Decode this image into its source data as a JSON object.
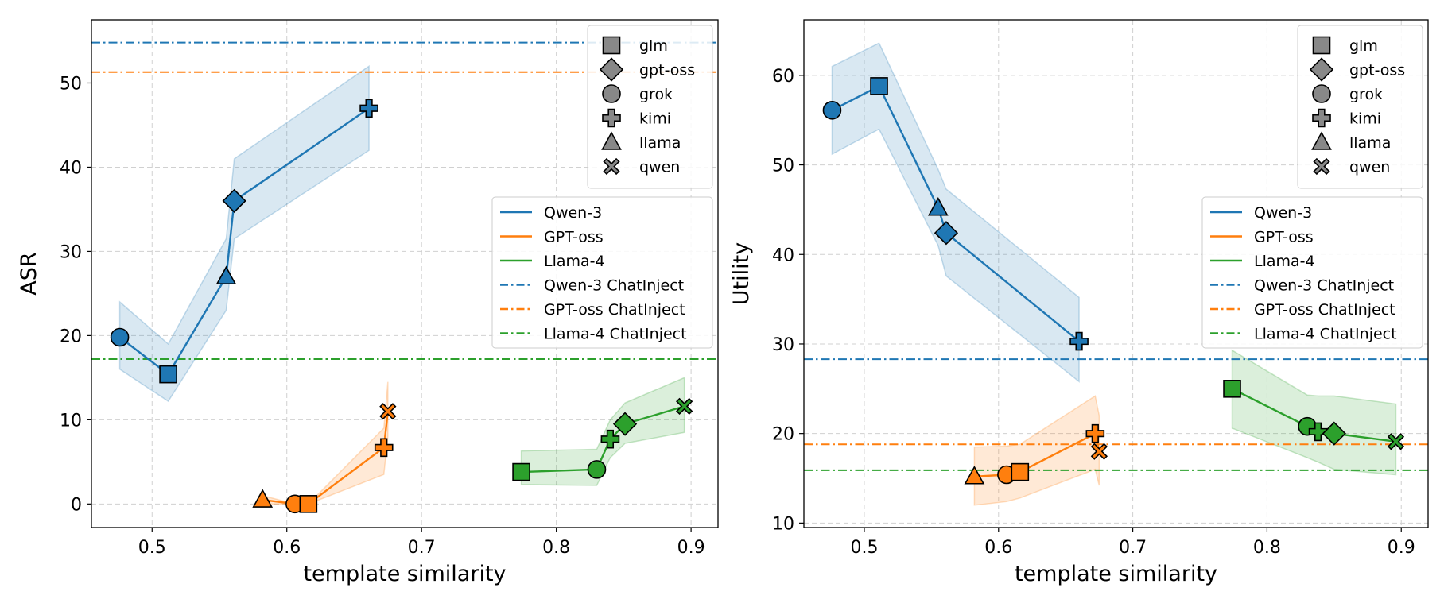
{
  "chart_data": [
    {
      "type": "line",
      "xlabel": "template similarity",
      "ylabel": "ASR",
      "xlim": [
        0.455,
        0.92
      ],
      "ylim": [
        -2.8,
        57.5
      ],
      "xticks": [
        "0.5",
        "0.6",
        "0.7",
        "0.8",
        "0.9"
      ],
      "yticks": [
        "0",
        "10",
        "20",
        "30",
        "40",
        "50"
      ],
      "grid": true,
      "marker_legend_placement": "top-right",
      "line_legend_placement": "center-right",
      "series": [
        {
          "name": "Qwen-3",
          "color": "#1f77b4",
          "points": [
            {
              "model": "grok",
              "x": 0.476,
              "y": 19.8
            },
            {
              "model": "glm",
              "x": 0.512,
              "y": 15.4
            },
            {
              "model": "llama",
              "x": 0.555,
              "y": 27.0
            },
            {
              "model": "gpt-oss",
              "x": 0.561,
              "y": 36.0
            },
            {
              "model": "kimi",
              "x": 0.661,
              "y": 47.0
            }
          ],
          "band": [
            {
              "x": 0.476,
              "lo": 16.0,
              "hi": 24.0
            },
            {
              "x": 0.512,
              "lo": 12.2,
              "hi": 19.0
            },
            {
              "x": 0.555,
              "lo": 23.0,
              "hi": 31.5
            },
            {
              "x": 0.561,
              "lo": 31.5,
              "hi": 41.0
            },
            {
              "x": 0.661,
              "lo": 42.0,
              "hi": 52.0
            }
          ]
        },
        {
          "name": "GPT-oss",
          "color": "#ff7f0e",
          "points": [
            {
              "model": "llama",
              "x": 0.582,
              "y": 0.5
            },
            {
              "model": "grok",
              "x": 0.606,
              "y": 0.0
            },
            {
              "model": "glm",
              "x": 0.616,
              "y": 0.0
            },
            {
              "model": "kimi",
              "x": 0.672,
              "y": 6.7
            },
            {
              "model": "qwen",
              "x": 0.675,
              "y": 11.0
            }
          ],
          "band": [
            {
              "x": 0.582,
              "lo": 0.0,
              "hi": 1.0
            },
            {
              "x": 0.606,
              "lo": 0.0,
              "hi": 0.0
            },
            {
              "x": 0.616,
              "lo": 0.0,
              "hi": 0.0
            },
            {
              "x": 0.672,
              "lo": 3.5,
              "hi": 9.0
            },
            {
              "x": 0.675,
              "lo": 8.0,
              "hi": 14.5
            }
          ]
        },
        {
          "name": "Llama-4",
          "color": "#2ca02c",
          "points": [
            {
              "model": "glm",
              "x": 0.774,
              "y": 3.8
            },
            {
              "model": "grok",
              "x": 0.83,
              "y": 4.1
            },
            {
              "model": "kimi",
              "x": 0.84,
              "y": 7.7
            },
            {
              "model": "gpt-oss",
              "x": 0.851,
              "y": 9.5
            },
            {
              "model": "qwen",
              "x": 0.895,
              "y": 11.6
            }
          ],
          "band": [
            {
              "x": 0.774,
              "lo": 2.3,
              "hi": 6.3
            },
            {
              "x": 0.83,
              "lo": 2.2,
              "hi": 6.5
            },
            {
              "x": 0.84,
              "lo": 5.5,
              "hi": 10.0
            },
            {
              "x": 0.851,
              "lo": 7.2,
              "hi": 12.0
            },
            {
              "x": 0.895,
              "lo": 8.5,
              "hi": 15.0
            }
          ]
        }
      ],
      "hlines": [
        {
          "name": "Qwen-3 ChatInject",
          "y": 54.8,
          "color": "#1f77b4"
        },
        {
          "name": "GPT-oss ChatInject",
          "y": 51.3,
          "color": "#ff7f0e"
        },
        {
          "name": "Llama-4 ChatInject",
          "y": 17.2,
          "color": "#2ca02c"
        }
      ],
      "marker_legend": [
        "glm",
        "gpt-oss",
        "grok",
        "kimi",
        "llama",
        "qwen"
      ],
      "line_legend": [
        "Qwen-3",
        "GPT-oss",
        "Llama-4",
        "Qwen-3 ChatInject",
        "GPT-oss ChatInject",
        "Llama-4 ChatInject"
      ]
    },
    {
      "type": "line",
      "xlabel": "template similarity",
      "ylabel": "Utility",
      "xlim": [
        0.455,
        0.92
      ],
      "ylim": [
        9.5,
        66.2
      ],
      "xticks": [
        "0.5",
        "0.6",
        "0.7",
        "0.8",
        "0.9"
      ],
      "yticks": [
        "10",
        "20",
        "30",
        "40",
        "50",
        "60"
      ],
      "grid": true,
      "marker_legend_placement": "top-right",
      "line_legend_placement": "center-right",
      "series": [
        {
          "name": "Qwen-3",
          "color": "#1f77b4",
          "points": [
            {
              "model": "grok",
              "x": 0.476,
              "y": 56.1
            },
            {
              "model": "glm",
              "x": 0.511,
              "y": 58.8
            },
            {
              "model": "llama",
              "x": 0.555,
              "y": 45.2
            },
            {
              "model": "gpt-oss",
              "x": 0.561,
              "y": 42.4
            },
            {
              "model": "kimi",
              "x": 0.66,
              "y": 30.3
            }
          ],
          "band": [
            {
              "x": 0.476,
              "lo": 51.2,
              "hi": 61.0
            },
            {
              "x": 0.511,
              "lo": 54.0,
              "hi": 63.6
            },
            {
              "x": 0.555,
              "lo": 41.0,
              "hi": 49.5
            },
            {
              "x": 0.561,
              "lo": 37.6,
              "hi": 47.3
            },
            {
              "x": 0.66,
              "lo": 25.8,
              "hi": 35.2
            }
          ]
        },
        {
          "name": "GPT-oss",
          "color": "#ff7f0e",
          "points": [
            {
              "model": "llama",
              "x": 0.582,
              "y": 15.2
            },
            {
              "model": "grok",
              "x": 0.606,
              "y": 15.4
            },
            {
              "model": "glm",
              "x": 0.616,
              "y": 15.7
            },
            {
              "model": "kimi",
              "x": 0.672,
              "y": 20.0
            },
            {
              "model": "qwen",
              "x": 0.675,
              "y": 18.0
            }
          ],
          "band": [
            {
              "x": 0.582,
              "lo": 12.0,
              "hi": 18.5
            },
            {
              "x": 0.606,
              "lo": 12.4,
              "hi": 18.6
            },
            {
              "x": 0.616,
              "lo": 12.8,
              "hi": 18.8
            },
            {
              "x": 0.672,
              "lo": 16.0,
              "hi": 24.2
            },
            {
              "x": 0.675,
              "lo": 14.2,
              "hi": 22.0
            }
          ]
        },
        {
          "name": "Llama-4",
          "color": "#2ca02c",
          "points": [
            {
              "model": "glm",
              "x": 0.774,
              "y": 25.0
            },
            {
              "model": "grok",
              "x": 0.83,
              "y": 20.8
            },
            {
              "model": "kimi",
              "x": 0.838,
              "y": 20.2
            },
            {
              "model": "gpt-oss",
              "x": 0.85,
              "y": 20.0
            },
            {
              "model": "qwen",
              "x": 0.896,
              "y": 19.1
            }
          ],
          "band": [
            {
              "x": 0.774,
              "lo": 20.6,
              "hi": 29.3
            },
            {
              "x": 0.83,
              "lo": 17.3,
              "hi": 24.3
            },
            {
              "x": 0.838,
              "lo": 16.8,
              "hi": 24.2
            },
            {
              "x": 0.85,
              "lo": 16.0,
              "hi": 24.2
            },
            {
              "x": 0.896,
              "lo": 15.4,
              "hi": 23.3
            }
          ]
        }
      ],
      "hlines": [
        {
          "name": "Qwen-3 ChatInject",
          "y": 28.3,
          "color": "#1f77b4"
        },
        {
          "name": "GPT-oss ChatInject",
          "y": 18.8,
          "color": "#ff7f0e"
        },
        {
          "name": "Llama-4 ChatInject",
          "y": 15.9,
          "color": "#2ca02c"
        }
      ],
      "marker_legend": [
        "glm",
        "gpt-oss",
        "grok",
        "kimi",
        "llama",
        "qwen"
      ],
      "line_legend": [
        "Qwen-3",
        "GPT-oss",
        "Llama-4",
        "Qwen-3 ChatInject",
        "GPT-oss ChatInject",
        "Llama-4 ChatInject"
      ]
    }
  ]
}
